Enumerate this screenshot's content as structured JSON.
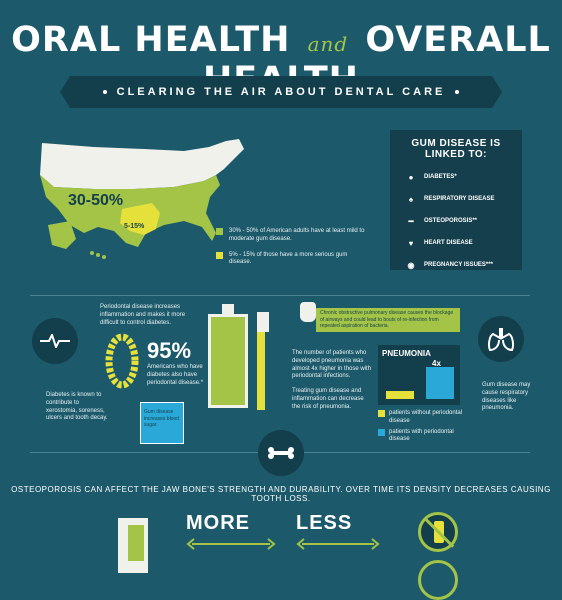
{
  "title": {
    "part1": "ORAL HEALTH",
    "and": "and",
    "part2": "OVERALL HEALTH"
  },
  "subtitle": "CLEARING THE AIR ABOUT DENTAL CARE",
  "map": {
    "label_main": "30-50%",
    "label_minor": "5-15%",
    "legend": [
      {
        "color": "#a3c447",
        "text": "30% - 50% of American adults have at least mild to moderate gum disease."
      },
      {
        "color": "#e6e03a",
        "text": "5% - 15% of those have a more serious gum disease."
      }
    ]
  },
  "panel": {
    "title": "GUM DISEASE IS LINKED TO:",
    "items": [
      {
        "icon": "diabetes-icon",
        "label": "DIABETES*"
      },
      {
        "icon": "lungs-icon",
        "label": "RESPIRATORY DISEASE"
      },
      {
        "icon": "bone-icon",
        "label": "OSTEOPOROSIS**"
      },
      {
        "icon": "heart-icon",
        "label": "HEART DISEASE"
      },
      {
        "icon": "baby-icon",
        "label": "PREGNANCY ISSUES***"
      }
    ]
  },
  "diabetes": {
    "intro": "Periodontal disease increases inflammation and makes it more difficult to control diabetes.",
    "stat": "95%",
    "stat_text": "Americans who have diabetes also have periodontal disease.*",
    "left_text": "Diabetes is known to contribute to xerostomia, soreness, ulcers and tooth decay.",
    "floss_text": "Gum disease increases blood sugar."
  },
  "respiratory": {
    "callout": "Chronic obstructive pulmonary disease causes the blockage of airways and could lead to bouts of re-infection from repeated aspiration of bacteria.",
    "stat_text": "The number of patients who developed pneumonia was almost 4x higher in those with periodontal infections.",
    "treat_text": "Treating gum disease and inflammation can decrease the risk of pneumonia.",
    "chart_title": "PNEUMONIA",
    "bar_label": "4x",
    "legend": [
      {
        "color": "#e6e03a",
        "text": "patients without periodontal disease"
      },
      {
        "color": "#2aa9d8",
        "text": "patients with periodontal disease"
      }
    ],
    "lung_text": "Gum disease may cause respiratory diseases like pneumonia."
  },
  "osteo": {
    "text": "OSTEOPOROSIS CAN AFFECT THE JAW BONE'S STRENGTH AND DURABILITY. OVER TIME ITS DENSITY DECREASES CAUSING TOOTH LOSS.",
    "more": "MORE",
    "less": "LESS"
  },
  "colors": {
    "bg": "#1c5a6b",
    "dark": "#133f4c",
    "green": "#a3c447",
    "yellow": "#e6e03a",
    "blue": "#2aa9d8"
  }
}
